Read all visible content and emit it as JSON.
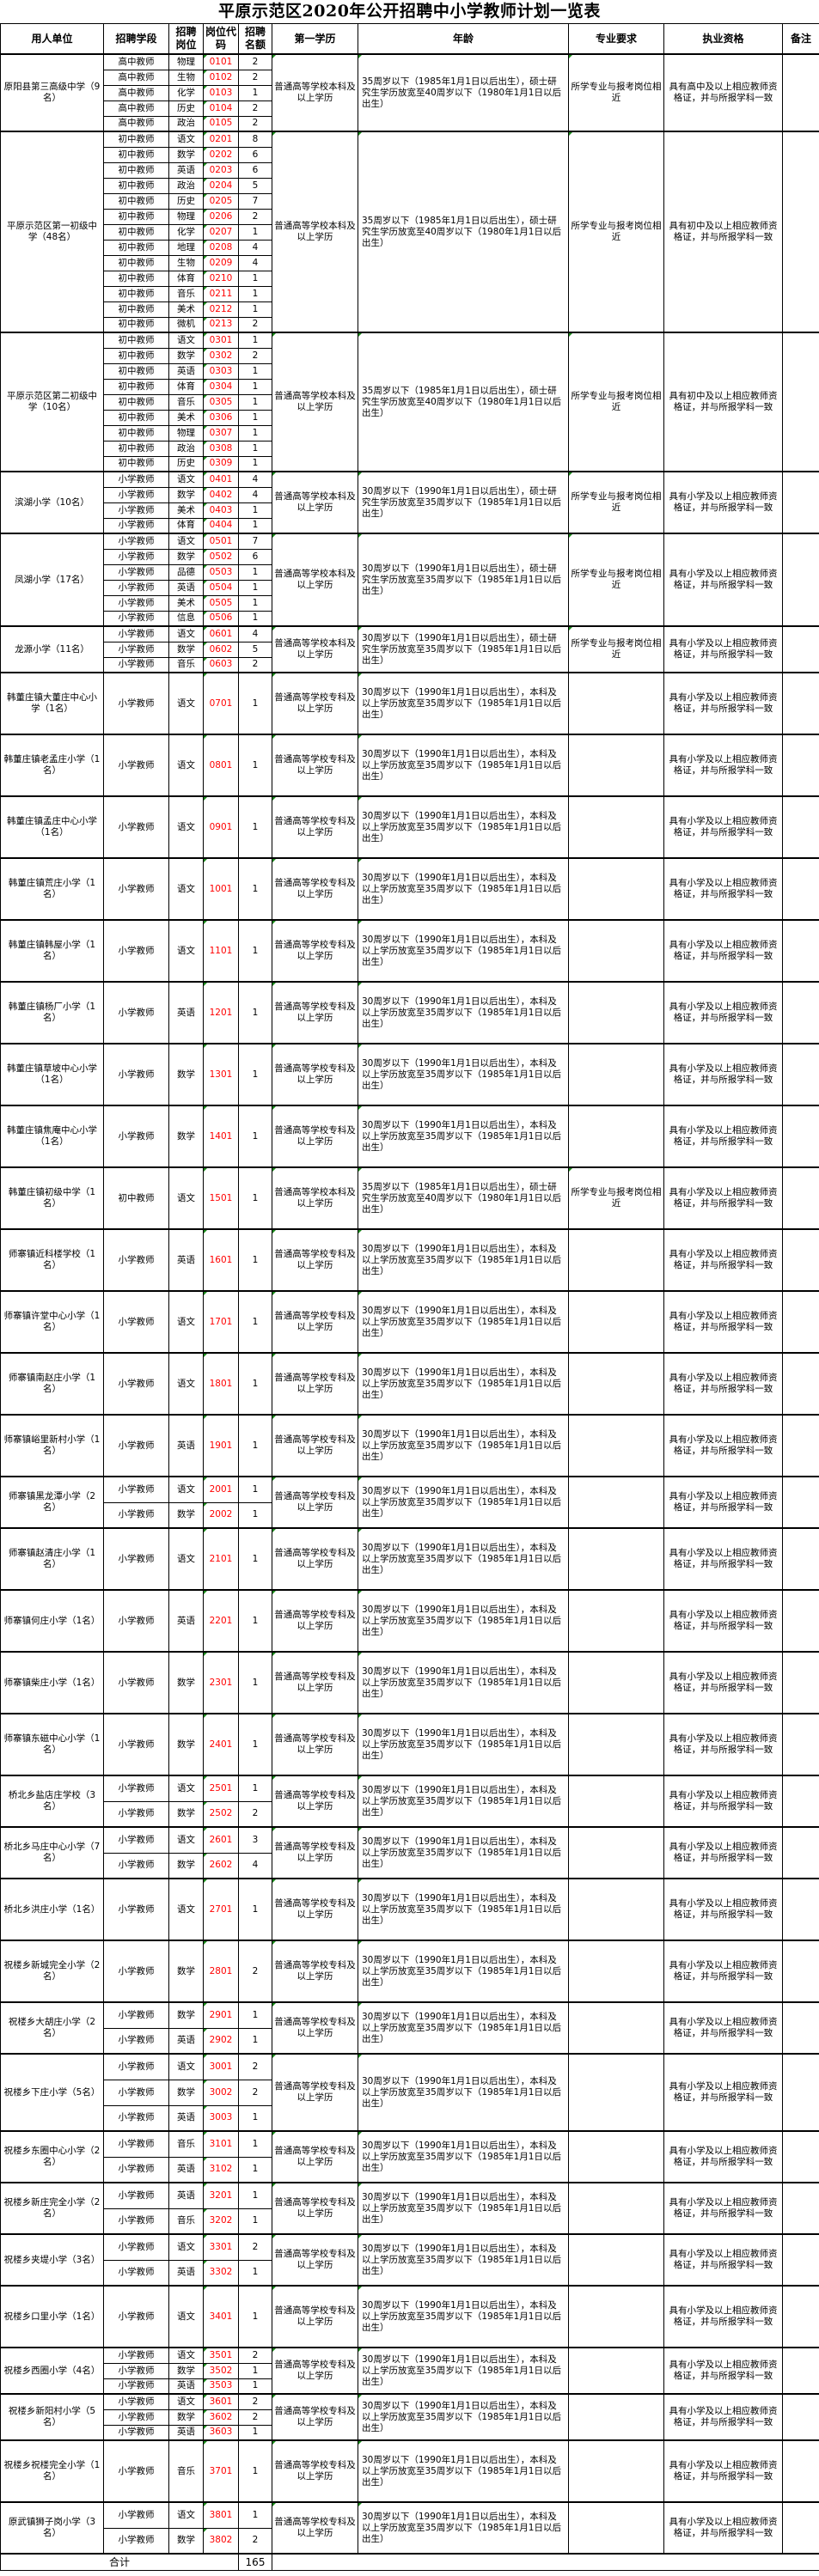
{
  "title": "平原示范区2020年公开招聘中小学教师计划一览表",
  "headers": [
    "用人单位",
    "招聘学段",
    "招聘岗位",
    "岗位代码",
    "招聘名额",
    "第一学历",
    "年龄",
    "专业要求",
    "执业资格",
    "备注"
  ],
  "colors": {
    "code_text": "#ff0000",
    "cell_marker": "#1a8a1a"
  },
  "groups": [
    {
      "unit": "原阳县第三高级中学（9名）",
      "edu": "普通高等学校本科及以上学历",
      "age": "35周岁以下（1985年1月1日以后出生），硕士研究生学历放宽至40周岁以下（1980年1月1日以后出生）",
      "major": "所学专业与报考岗位相近",
      "qual": "具有高中及以上相应教师资格证，并与所报学科一致",
      "rows": [
        [
          "高中教师",
          "物理",
          "0101",
          "2"
        ],
        [
          "高中教师",
          "生物",
          "0102",
          "2"
        ],
        [
          "高中教师",
          "化学",
          "0103",
          "1"
        ],
        [
          "高中教师",
          "历史",
          "0104",
          "2"
        ],
        [
          "高中教师",
          "政治",
          "0105",
          "2"
        ]
      ]
    },
    {
      "unit": "平原示范区第一初级中学（48名）",
      "edu": "普通高等学校本科及以上学历",
      "age": "35周岁以下（1985年1月1日以后出生），硕士研究生学历放宽至40周岁以下（1980年1月1日以后出生）",
      "major": "所学专业与报考岗位相近",
      "qual": "具有初中及以上相应教师资格证，并与所报学科一致",
      "rows": [
        [
          "初中教师",
          "语文",
          "0201",
          "8"
        ],
        [
          "初中教师",
          "数学",
          "0202",
          "6"
        ],
        [
          "初中教师",
          "英语",
          "0203",
          "6"
        ],
        [
          "初中教师",
          "政治",
          "0204",
          "5"
        ],
        [
          "初中教师",
          "历史",
          "0205",
          "7"
        ],
        [
          "初中教师",
          "物理",
          "0206",
          "2"
        ],
        [
          "初中教师",
          "化学",
          "0207",
          "1"
        ],
        [
          "初中教师",
          "地理",
          "0208",
          "4"
        ],
        [
          "初中教师",
          "生物",
          "0209",
          "4"
        ],
        [
          "初中教师",
          "体育",
          "0210",
          "1"
        ],
        [
          "初中教师",
          "音乐",
          "0211",
          "1"
        ],
        [
          "初中教师",
          "美术",
          "0212",
          "1"
        ],
        [
          "初中教师",
          "微机",
          "0213",
          "2"
        ]
      ]
    },
    {
      "unit": "平原示范区第二初级中学（10名）",
      "edu": "普通高等学校本科及以上学历",
      "age": "35周岁以下（1985年1月1日以后出生），硕士研究生学历放宽至40周岁以下（1980年1月1日以后出生）",
      "major": "所学专业与报考岗位相近",
      "qual": "具有初中及以上相应教师资格证，并与所报学科一致",
      "rows": [
        [
          "初中教师",
          "语文",
          "0301",
          "1"
        ],
        [
          "初中教师",
          "数学",
          "0302",
          "2"
        ],
        [
          "初中教师",
          "英语",
          "0303",
          "1"
        ],
        [
          "初中教师",
          "体育",
          "0304",
          "1"
        ],
        [
          "初中教师",
          "音乐",
          "0305",
          "1"
        ],
        [
          "初中教师",
          "美术",
          "0306",
          "1"
        ],
        [
          "初中教师",
          "物理",
          "0307",
          "1"
        ],
        [
          "初中教师",
          "政治",
          "0308",
          "1"
        ],
        [
          "初中教师",
          "历史",
          "0309",
          "1"
        ]
      ]
    },
    {
      "unit": "滨湖小学（10名）",
      "edu": "普通高等学校本科及以上学历",
      "age": "30周岁以下（1990年1月1日以后出生），硕士研究生学历放宽至35周岁以下（1985年1月1日以后出生）",
      "major": "所学专业与报考岗位相近",
      "qual": "具有小学及以上相应教师资格证，并与所报学科一致",
      "rows": [
        [
          "小学教师",
          "语文",
          "0401",
          "4"
        ],
        [
          "小学教师",
          "数学",
          "0402",
          "4"
        ],
        [
          "小学教师",
          "美术",
          "0403",
          "1"
        ],
        [
          "小学教师",
          "体育",
          "0404",
          "1"
        ]
      ]
    },
    {
      "unit": "凤湖小学（17名）",
      "edu": "普通高等学校本科及以上学历",
      "age": "30周岁以下（1990年1月1日以后出生），硕士研究生学历放宽至35周岁以下（1985年1月1日以后出生）",
      "major": "所学专业与报考岗位相近",
      "qual": "具有小学及以上相应教师资格证，并与所报学科一致",
      "rows": [
        [
          "小学教师",
          "语文",
          "0501",
          "7"
        ],
        [
          "小学教师",
          "数学",
          "0502",
          "6"
        ],
        [
          "小学教师",
          "品德",
          "0503",
          "1"
        ],
        [
          "小学教师",
          "英语",
          "0504",
          "1"
        ],
        [
          "小学教师",
          "美术",
          "0505",
          "1"
        ],
        [
          "小学教师",
          "信息",
          "0506",
          "1"
        ]
      ]
    },
    {
      "unit": "龙源小学（11名）",
      "edu": "普通高等学校本科及以上学历",
      "age": "30周岁以下（1990年1月1日以后出生），硕士研究生学历放宽至35周岁以下（1985年1月1日以后出生）",
      "major": "所学专业与报考岗位相近",
      "qual": "具有小学及以上相应教师资格证，并与所报学科一致",
      "rows": [
        [
          "小学教师",
          "语文",
          "0601",
          "4"
        ],
        [
          "小学教师",
          "数学",
          "0602",
          "5"
        ],
        [
          "小学教师",
          "音乐",
          "0603",
          "2"
        ]
      ]
    },
    {
      "unit": "韩董庄镇大董庄中心小学（1名）",
      "edu": "普通高等学校专科及以上学历",
      "age": "30周岁以下（1990年1月1日以后出生），本科及以上学历放宽至35周岁以下（1985年1月1日以后出生）",
      "major": "",
      "qual": "具有小学及以上相应教师资格证，并与所报学科一致",
      "rows": [
        [
          "小学教师",
          "语文",
          "0701",
          "1"
        ]
      ]
    },
    {
      "unit": "韩董庄镇老孟庄小学（1名）",
      "edu": "普通高等学校专科及以上学历",
      "age": "30周岁以下（1990年1月1日以后出生），本科及以上学历放宽至35周岁以下（1985年1月1日以后出生）",
      "major": "",
      "qual": "具有小学及以上相应教师资格证，并与所报学科一致",
      "rows": [
        [
          "小学教师",
          "语文",
          "0801",
          "1"
        ]
      ]
    },
    {
      "unit": "韩董庄镇孟庄中心小学（1名）",
      "edu": "普通高等学校专科及以上学历",
      "age": "30周岁以下（1990年1月1日以后出生），本科及以上学历放宽至35周岁以下（1985年1月1日以后出生）",
      "major": "",
      "qual": "具有小学及以上相应教师资格证，并与所报学科一致",
      "rows": [
        [
          "小学教师",
          "语文",
          "0901",
          "1"
        ]
      ]
    },
    {
      "unit": "韩董庄镇荒庄小学（1名）",
      "edu": "普通高等学校专科及以上学历",
      "age": "30周岁以下（1990年1月1日以后出生），本科及以上学历放宽至35周岁以下（1985年1月1日以后出生）",
      "major": "",
      "qual": "具有小学及以上相应教师资格证，并与所报学科一致",
      "rows": [
        [
          "小学教师",
          "语文",
          "1001",
          "1"
        ]
      ]
    },
    {
      "unit": "韩董庄镇韩屋小学（1名）",
      "edu": "普通高等学校专科及以上学历",
      "age": "30周岁以下（1990年1月1日以后出生），本科及以上学历放宽至35周岁以下（1985年1月1日以后出生）",
      "major": "",
      "qual": "具有小学及以上相应教师资格证，并与所报学科一致",
      "rows": [
        [
          "小学教师",
          "语文",
          "1101",
          "1"
        ]
      ]
    },
    {
      "unit": "韩董庄镇杨厂小学（1名）",
      "edu": "普通高等学校专科及以上学历",
      "age": "30周岁以下（1990年1月1日以后出生），本科及以上学历放宽至35周岁以下（1985年1月1日以后出生）",
      "major": "",
      "qual": "具有小学及以上相应教师资格证，并与所报学科一致",
      "rows": [
        [
          "小学教师",
          "英语",
          "1201",
          "1"
        ]
      ]
    },
    {
      "unit": "韩董庄镇草坡中心小学（1名）",
      "edu": "普通高等学校专科及以上学历",
      "age": "30周岁以下（1990年1月1日以后出生），本科及以上学历放宽至35周岁以下（1985年1月1日以后出生）",
      "major": "",
      "qual": "具有小学及以上相应教师资格证，并与所报学科一致",
      "rows": [
        [
          "小学教师",
          "数学",
          "1301",
          "1"
        ]
      ]
    },
    {
      "unit": "韩董庄镇焦庵中心小学（1名）",
      "edu": "普通高等学校专科及以上学历",
      "age": "30周岁以下（1990年1月1日以后出生），本科及以上学历放宽至35周岁以下（1985年1月1日以后出生）",
      "major": "",
      "qual": "具有小学及以上相应教师资格证，并与所报学科一致",
      "rows": [
        [
          "小学教师",
          "数学",
          "1401",
          "1"
        ]
      ]
    },
    {
      "unit": "韩董庄镇初级中学（1名）",
      "edu": "普通高等学校本科及以上学历",
      "age": "35周岁以下（1985年1月1日以后出生），硕士研究生学历放宽至40周岁以下（1980年1月1日以后出生）",
      "major": "所学专业与报考岗位相近",
      "qual": "具有小学及以上相应教师资格证，并与所报学科一致",
      "rows": [
        [
          "初中教师",
          "语文",
          "1501",
          "1"
        ]
      ]
    },
    {
      "unit": "师寨镇近科楼学校（1名）",
      "edu": "普通高等学校专科及以上学历",
      "age": "30周岁以下（1990年1月1日以后出生），本科及以上学历放宽至35周岁以下（1985年1月1日以后出生）",
      "major": "",
      "qual": "具有小学及以上相应教师资格证，并与所报学科一致",
      "rows": [
        [
          "小学教师",
          "英语",
          "1601",
          "1"
        ]
      ]
    },
    {
      "unit": "师寨镇许堂中心小学（1名）",
      "edu": "普通高等学校专科及以上学历",
      "age": "30周岁以下（1990年1月1日以后出生），本科及以上学历放宽至35周岁以下（1985年1月1日以后出生）",
      "major": "",
      "qual": "具有小学及以上相应教师资格证，并与所报学科一致",
      "rows": [
        [
          "小学教师",
          "语文",
          "1701",
          "1"
        ]
      ]
    },
    {
      "unit": "师寨镇南赵庄小学（1名）",
      "edu": "普通高等学校专科及以上学历",
      "age": "30周岁以下（1990年1月1日以后出生），本科及以上学历放宽至35周岁以下（1985年1月1日以后出生）",
      "major": "",
      "qual": "具有小学及以上相应教师资格证，并与所报学科一致",
      "rows": [
        [
          "小学教师",
          "语文",
          "1801",
          "1"
        ]
      ]
    },
    {
      "unit": "师寨镇峪里新村小学（1名）",
      "edu": "普通高等学校专科及以上学历",
      "age": "30周岁以下（1990年1月1日以后出生），本科及以上学历放宽至35周岁以下（1985年1月1日以后出生）",
      "major": "",
      "qual": "具有小学及以上相应教师资格证，并与所报学科一致",
      "rows": [
        [
          "小学教师",
          "英语",
          "1901",
          "1"
        ]
      ]
    },
    {
      "unit": "师寨镇黑龙潭小学（2名）",
      "edu": "普通高等学校专科及以上学历",
      "age": "30周岁以下（1990年1月1日以后出生），本科及以上学历放宽至35周岁以下（1985年1月1日以后出生）",
      "major": "",
      "qual": "具有小学及以上相应教师资格证，并与所报学科一致",
      "rows": [
        [
          "小学教师",
          "语文",
          "2001",
          "1"
        ],
        [
          "小学教师",
          "数学",
          "2002",
          "1"
        ]
      ]
    },
    {
      "unit": "师寨镇赵清庄小学（1名）",
      "edu": "普通高等学校专科及以上学历",
      "age": "30周岁以下（1990年1月1日以后出生），本科及以上学历放宽至35周岁以下（1985年1月1日以后出生）",
      "major": "",
      "qual": "具有小学及以上相应教师资格证，并与所报学科一致",
      "rows": [
        [
          "小学教师",
          "语文",
          "2101",
          "1"
        ]
      ]
    },
    {
      "unit": "师寨镇何庄小学（1名）",
      "edu": "普通高等学校专科及以上学历",
      "age": "30周岁以下（1990年1月1日以后出生），本科及以上学历放宽至35周岁以下（1985年1月1日以后出生）",
      "major": "",
      "qual": "具有小学及以上相应教师资格证，并与所报学科一致",
      "rows": [
        [
          "小学教师",
          "英语",
          "2201",
          "1"
        ]
      ]
    },
    {
      "unit": "师寨镇柴庄小学（1名）",
      "edu": "普通高等学校专科及以上学历",
      "age": "30周岁以下（1990年1月1日以后出生），本科及以上学历放宽至35周岁以下（1985年1月1日以后出生）",
      "major": "",
      "qual": "具有小学及以上相应教师资格证，并与所报学科一致",
      "rows": [
        [
          "小学教师",
          "数学",
          "2301",
          "1"
        ]
      ]
    },
    {
      "unit": "师寨镇东磁中心小学（1名）",
      "edu": "普通高等学校专科及以上学历",
      "age": "30周岁以下（1990年1月1日以后出生），本科及以上学历放宽至35周岁以下（1985年1月1日以后出生）",
      "major": "",
      "qual": "具有小学及以上相应教师资格证，并与所报学科一致",
      "rows": [
        [
          "小学教师",
          "数学",
          "2401",
          "1"
        ]
      ]
    },
    {
      "unit": "桥北乡盐店庄学校（3名）",
      "edu": "普通高等学校专科及以上学历",
      "age": "30周岁以下（1990年1月1日以后出生），本科及以上学历放宽至35周岁以下（1985年1月1日以后出生）",
      "major": "",
      "qual": "具有小学及以上相应教师资格证，并与所报学科一致",
      "rows": [
        [
          "小学教师",
          "语文",
          "2501",
          "1"
        ],
        [
          "小学教师",
          "数学",
          "2502",
          "2"
        ]
      ]
    },
    {
      "unit": "桥北乡马庄中心小学（7名）",
      "edu": "普通高等学校专科及以上学历",
      "age": "30周岁以下（1990年1月1日以后出生），本科及以上学历放宽至35周岁以下（1985年1月1日以后出生）",
      "major": "",
      "qual": "具有小学及以上相应教师资格证，并与所报学科一致",
      "rows": [
        [
          "小学教师",
          "语文",
          "2601",
          "3"
        ],
        [
          "小学教师",
          "数学",
          "2602",
          "4"
        ]
      ]
    },
    {
      "unit": "桥北乡洪庄小学（1名）",
      "edu": "普通高等学校专科及以上学历",
      "age": "30周岁以下（1990年1月1日以后出生），本科及以上学历放宽至35周岁以下（1985年1月1日以后出生）",
      "major": "",
      "qual": "具有小学及以上相应教师资格证，并与所报学科一致",
      "rows": [
        [
          "小学教师",
          "语文",
          "2701",
          "1"
        ]
      ]
    },
    {
      "unit": "祝楼乡新城完全小学（2名）",
      "edu": "普通高等学校专科及以上学历",
      "age": "30周岁以下（1990年1月1日以后出生），本科及以上学历放宽至35周岁以下（1985年1月1日以后出生）",
      "major": "",
      "qual": "具有小学及以上相应教师资格证，并与所报学科一致",
      "rows": [
        [
          "小学教师",
          "数学",
          "2801",
          "2"
        ]
      ]
    },
    {
      "unit": "祝楼乡大胡庄小学（2名）",
      "edu": "普通高等学校专科及以上学历",
      "age": "30周岁以下（1990年1月1日以后出生），本科及以上学历放宽至35周岁以下（1985年1月1日以后出生）",
      "major": "",
      "qual": "具有小学及以上相应教师资格证，并与所报学科一致",
      "rows": [
        [
          "小学教师",
          "数学",
          "2901",
          "1"
        ],
        [
          "小学教师",
          "英语",
          "2902",
          "1"
        ]
      ]
    },
    {
      "unit": "祝楼乡下庄小学（5名）",
      "edu": "普通高等学校专科及以上学历",
      "age": "30周岁以下（1990年1月1日以后出生），本科及以上学历放宽至35周岁以下（1985年1月1日以后出生）",
      "major": "",
      "qual": "具有小学及以上相应教师资格证，并与所报学科一致",
      "rows": [
        [
          "小学教师",
          "语文",
          "3001",
          "2"
        ],
        [
          "小学教师",
          "数学",
          "3002",
          "2"
        ],
        [
          "小学教师",
          "英语",
          "3003",
          "1"
        ]
      ]
    },
    {
      "unit": "祝楼乡东圈中心小学（2名）",
      "edu": "普通高等学校专科及以上学历",
      "age": "30周岁以下（1990年1月1日以后出生），本科及以上学历放宽至35周岁以下（1985年1月1日以后出生）",
      "major": "",
      "qual": "具有小学及以上相应教师资格证，并与所报学科一致",
      "rows": [
        [
          "小学教师",
          "音乐",
          "3101",
          "1"
        ],
        [
          "小学教师",
          "英语",
          "3102",
          "1"
        ]
      ]
    },
    {
      "unit": "祝楼乡新庄完全小学（2名）",
      "edu": "普通高等学校专科及以上学历",
      "age": "30周岁以下（1990年1月1日以后出生），本科及以上学历放宽至35周岁以下（1985年1月1日以后出生）",
      "major": "",
      "qual": "具有小学及以上相应教师资格证，并与所报学科一致",
      "rows": [
        [
          "小学教师",
          "英语",
          "3201",
          "1"
        ],
        [
          "小学教师",
          "音乐",
          "3202",
          "1"
        ]
      ]
    },
    {
      "unit": "祝楼乡夹堤小学（3名）",
      "edu": "普通高等学校专科及以上学历",
      "age": "30周岁以下（1990年1月1日以后出生），本科及以上学历放宽至35周岁以下（1985年1月1日以后出生）",
      "major": "",
      "qual": "具有小学及以上相应教师资格证，并与所报学科一致",
      "rows": [
        [
          "小学教师",
          "语文",
          "3301",
          "2"
        ],
        [
          "小学教师",
          "英语",
          "3302",
          "1"
        ]
      ]
    },
    {
      "unit": "祝楼乡口里小学（1名）",
      "edu": "普通高等学校专科及以上学历",
      "age": "30周岁以下（1990年1月1日以后出生），本科及以上学历放宽至35周岁以下（1985年1月1日以后出生）",
      "major": "",
      "qual": "具有小学及以上相应教师资格证，并与所报学科一致",
      "rows": [
        [
          "小学教师",
          "语文",
          "3401",
          "1"
        ]
      ]
    },
    {
      "unit": "祝楼乡西圈小学（4名）",
      "edu": "普通高等学校专科及以上学历",
      "age": "30周岁以下（1990年1月1日以后出生），本科及以上学历放宽至35周岁以下（1985年1月1日以后出生）",
      "major": "",
      "qual": "具有小学及以上相应教师资格证，并与所报学科一致",
      "rows": [
        [
          "小学教师",
          "语文",
          "3501",
          "2"
        ],
        [
          "小学教师",
          "数学",
          "3502",
          "1"
        ],
        [
          "小学教师",
          "英语",
          "3503",
          "1"
        ]
      ]
    },
    {
      "unit": "祝楼乡新阳村小学（5名）",
      "edu": "普通高等学校专科及以上学历",
      "age": "30周岁以下（1990年1月1日以后出生），本科及以上学历放宽至35周岁以下（1985年1月1日以后出生）",
      "major": "",
      "qual": "具有小学及以上相应教师资格证，并与所报学科一致",
      "rows": [
        [
          "小学教师",
          "语文",
          "3601",
          "2"
        ],
        [
          "小学教师",
          "数学",
          "3602",
          "2"
        ],
        [
          "小学教师",
          "英语",
          "3603",
          "1"
        ]
      ]
    },
    {
      "unit": "祝楼乡祝楼完全小学（1名）",
      "edu": "普通高等学校专科及以上学历",
      "age": "30周岁以下（1990年1月1日以后出生），本科及以上学历放宽至35周岁以下（1985年1月1日以后出生）",
      "major": "",
      "qual": "具有小学及以上相应教师资格证，并与所报学科一致",
      "rows": [
        [
          "小学教师",
          "音乐",
          "3701",
          "1"
        ]
      ]
    },
    {
      "unit": "原武镇狮子岗小学（3名）",
      "edu": "普通高等学校专科及以上学历",
      "age": "30周岁以下（1990年1月1日以后出生），本科及以上学历放宽至35周岁以下（1985年1月1日以后出生）",
      "major": "",
      "qual": "具有小学及以上相应教师资格证，并与所报学科一致",
      "rows": [
        [
          "小学教师",
          "语文",
          "3801",
          "1"
        ],
        [
          "小学教师",
          "数学",
          "3802",
          "2"
        ]
      ]
    }
  ],
  "total": {
    "label": "合计",
    "value": "165"
  }
}
